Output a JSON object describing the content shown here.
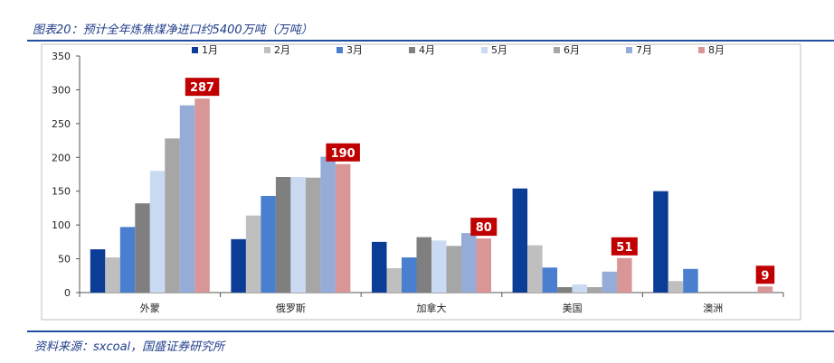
{
  "header": {
    "title": "图表20：预计全年炼焦煤净进口约5400万吨（万吨）"
  },
  "footer": {
    "source": "资料来源：sxcoal，国盛证券研究所"
  },
  "chart_data": {
    "type": "bar",
    "categories": [
      "外蒙",
      "俄罗斯",
      "加拿大",
      "美国",
      "澳洲"
    ],
    "ylim": [
      0,
      350
    ],
    "yticks": [
      0,
      50,
      100,
      150,
      200,
      250,
      300,
      350
    ],
    "legend_position": "top",
    "grid": false,
    "series": [
      {
        "name": "1月",
        "color": "#0b3c96",
        "values": [
          64,
          79,
          75,
          154,
          150
        ]
      },
      {
        "name": "2月",
        "color": "#bfbfbf",
        "values": [
          52,
          114,
          36,
          70,
          17
        ]
      },
      {
        "name": "3月",
        "color": "#4a7fcf",
        "values": [
          97,
          143,
          52,
          37,
          35
        ]
      },
      {
        "name": "4月",
        "color": "#7f7f7f",
        "values": [
          132,
          171,
          82,
          8,
          0
        ]
      },
      {
        "name": "5月",
        "color": "#c9daf2",
        "values": [
          180,
          171,
          77,
          12,
          0
        ]
      },
      {
        "name": "6月",
        "color": "#a6a6a6",
        "values": [
          228,
          170,
          69,
          8,
          0
        ]
      },
      {
        "name": "7月",
        "color": "#95acd8",
        "values": [
          277,
          201,
          88,
          31,
          0
        ]
      },
      {
        "name": "8月",
        "color": "#d99696",
        "values": [
          287,
          190,
          80,
          51,
          9
        ]
      }
    ],
    "data_labels": [
      {
        "series": "8月",
        "category": "外蒙",
        "text": "287"
      },
      {
        "series": "8月",
        "category": "俄罗斯",
        "text": "190"
      },
      {
        "series": "8月",
        "category": "加拿大",
        "text": "80"
      },
      {
        "series": "8月",
        "category": "美国",
        "text": "51"
      },
      {
        "series": "8月",
        "category": "澳洲",
        "text": "9"
      }
    ],
    "data_label_color": "#c00000"
  }
}
